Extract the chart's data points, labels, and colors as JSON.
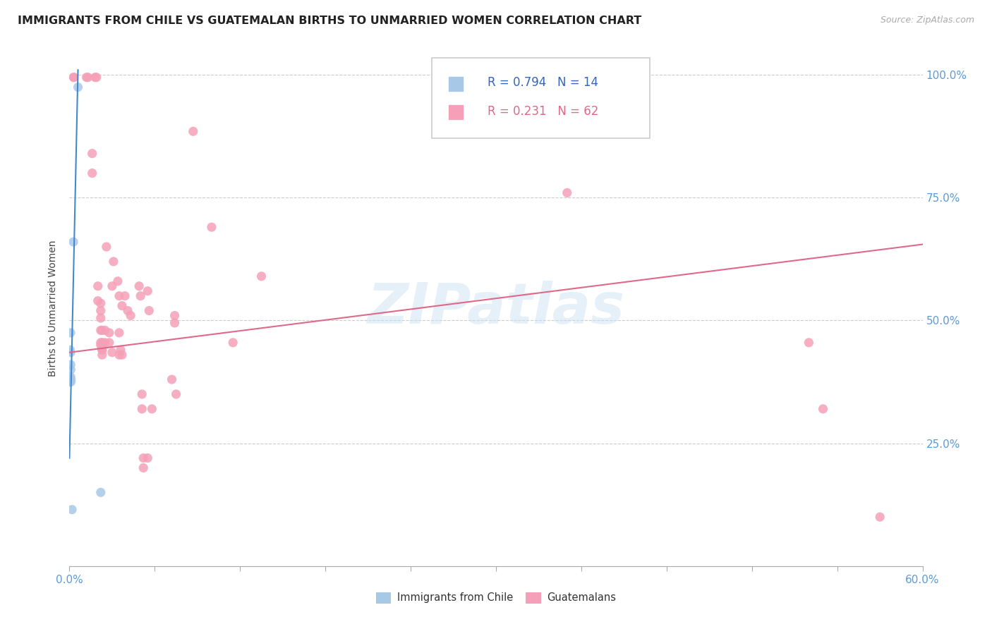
{
  "title": "IMMIGRANTS FROM CHILE VS GUATEMALAN BIRTHS TO UNMARRIED WOMEN CORRELATION CHART",
  "source": "Source: ZipAtlas.com",
  "ylabel": "Births to Unmarried Women",
  "ytick_vals": [
    0.0,
    0.25,
    0.5,
    0.75,
    1.0
  ],
  "ytick_labels": [
    "",
    "25.0%",
    "50.0%",
    "75.0%",
    "100.0%"
  ],
  "legend1_r": "0.794",
  "legend1_n": "14",
  "legend2_r": "0.231",
  "legend2_n": "62",
  "blue_color": "#a8c8e8",
  "pink_color": "#f5a0b8",
  "blue_line_color": "#4488cc",
  "pink_line_color": "#e06888",
  "watermark": "ZIPatlas",
  "blue_scatter": [
    [
      0.0005,
      0.44
    ],
    [
      0.0008,
      0.475
    ],
    [
      0.0008,
      0.435
    ],
    [
      0.0009,
      0.41
    ],
    [
      0.0009,
      0.4
    ],
    [
      0.0009,
      0.385
    ],
    [
      0.001,
      0.38
    ],
    [
      0.001,
      0.375
    ],
    [
      0.0018,
      0.115
    ],
    [
      0.0028,
      0.66
    ],
    [
      0.006,
      0.975
    ],
    [
      0.0001,
      0.38
    ],
    [
      0.0001,
      0.375
    ],
    [
      0.022,
      0.15
    ]
  ],
  "pink_scatter": [
    [
      0.003,
      0.995
    ],
    [
      0.003,
      0.995
    ],
    [
      0.012,
      0.995
    ],
    [
      0.013,
      0.995
    ],
    [
      0.016,
      0.84
    ],
    [
      0.016,
      0.8
    ],
    [
      0.018,
      0.995
    ],
    [
      0.019,
      0.995
    ],
    [
      0.02,
      0.57
    ],
    [
      0.02,
      0.54
    ],
    [
      0.022,
      0.535
    ],
    [
      0.022,
      0.52
    ],
    [
      0.022,
      0.505
    ],
    [
      0.022,
      0.48
    ],
    [
      0.022,
      0.455
    ],
    [
      0.022,
      0.45
    ],
    [
      0.023,
      0.48
    ],
    [
      0.023,
      0.455
    ],
    [
      0.023,
      0.445
    ],
    [
      0.023,
      0.44
    ],
    [
      0.023,
      0.44
    ],
    [
      0.023,
      0.43
    ],
    [
      0.025,
      0.48
    ],
    [
      0.025,
      0.455
    ],
    [
      0.026,
      0.65
    ],
    [
      0.028,
      0.475
    ],
    [
      0.028,
      0.455
    ],
    [
      0.03,
      0.57
    ],
    [
      0.03,
      0.435
    ],
    [
      0.031,
      0.62
    ],
    [
      0.034,
      0.58
    ],
    [
      0.035,
      0.55
    ],
    [
      0.035,
      0.475
    ],
    [
      0.035,
      0.43
    ],
    [
      0.036,
      0.44
    ],
    [
      0.037,
      0.53
    ],
    [
      0.037,
      0.43
    ],
    [
      0.039,
      0.55
    ],
    [
      0.041,
      0.52
    ],
    [
      0.043,
      0.51
    ],
    [
      0.049,
      0.57
    ],
    [
      0.05,
      0.55
    ],
    [
      0.051,
      0.35
    ],
    [
      0.051,
      0.32
    ],
    [
      0.052,
      0.22
    ],
    [
      0.052,
      0.2
    ],
    [
      0.055,
      0.22
    ],
    [
      0.055,
      0.56
    ],
    [
      0.056,
      0.52
    ],
    [
      0.058,
      0.32
    ],
    [
      0.072,
      0.38
    ],
    [
      0.074,
      0.51
    ],
    [
      0.074,
      0.495
    ],
    [
      0.075,
      0.35
    ],
    [
      0.087,
      0.885
    ],
    [
      0.1,
      0.69
    ],
    [
      0.115,
      0.455
    ],
    [
      0.135,
      0.59
    ],
    [
      0.35,
      0.76
    ],
    [
      0.52,
      0.455
    ],
    [
      0.53,
      0.32
    ],
    [
      0.57,
      0.1
    ]
  ],
  "blue_line_x0": 0.0,
  "blue_line_y0": 0.22,
  "blue_line_x1": 0.006,
  "blue_line_y1": 1.01,
  "pink_line_x0": 0.0,
  "pink_line_x1": 0.6,
  "pink_line_y0": 0.435,
  "pink_line_y1": 0.655,
  "xmin": 0.0,
  "xmax": 0.6,
  "ymin": 0.0,
  "ymax": 1.05
}
